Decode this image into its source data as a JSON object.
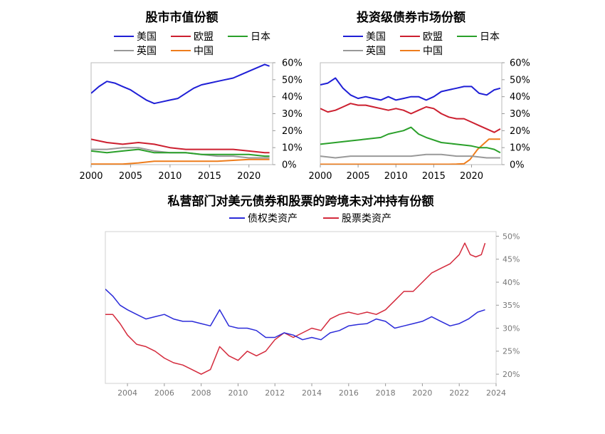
{
  "chart_data": [
    {
      "type": "line",
      "title": "股市市值份额",
      "xlim": [
        2000,
        2023
      ],
      "ylim": [
        0,
        60
      ],
      "x_ticks": [
        "2000",
        "2005",
        "2010",
        "2015",
        "2020"
      ],
      "y_ticks": [
        "0%",
        "10%",
        "20%",
        "30%",
        "40%",
        "50%",
        "60%"
      ],
      "grid": false,
      "legend_placement": "top",
      "series": [
        {
          "name": "美国",
          "color": "#1f1fd6",
          "x": [
            2000,
            2001,
            2002,
            2003,
            2004,
            2005,
            2006,
            2007,
            2008,
            2009,
            2010,
            2011,
            2012,
            2013,
            2014,
            2015,
            2016,
            2017,
            2018,
            2019,
            2020,
            2021,
            2022,
            2022.6
          ],
          "values": [
            42,
            46,
            49,
            48,
            46,
            44,
            41,
            38,
            36,
            37,
            38,
            39,
            42,
            45,
            47,
            48,
            49,
            50,
            51,
            53,
            55,
            57,
            59,
            58
          ]
        },
        {
          "name": "欧盟",
          "color": "#cc1f2f",
          "x": [
            2000,
            2002,
            2004,
            2006,
            2008,
            2010,
            2012,
            2014,
            2016,
            2018,
            2020,
            2022,
            2022.6
          ],
          "values": [
            15,
            13,
            12,
            13,
            12,
            10,
            9,
            9,
            9,
            9,
            8,
            7,
            7
          ]
        },
        {
          "name": "日本",
          "color": "#2aa02a",
          "x": [
            2000,
            2002,
            2004,
            2006,
            2008,
            2010,
            2012,
            2014,
            2016,
            2018,
            2020,
            2022,
            2022.6
          ],
          "values": [
            8,
            7,
            8,
            9,
            7,
            7,
            7,
            6,
            6,
            6,
            6,
            5,
            5
          ]
        },
        {
          "name": "英国",
          "color": "#999999",
          "x": [
            2000,
            2002,
            2004,
            2006,
            2008,
            2010,
            2012,
            2014,
            2016,
            2018,
            2020,
            2022,
            2022.6
          ],
          "values": [
            9,
            9,
            10,
            10,
            8,
            7,
            7,
            6,
            5,
            5,
            4,
            4,
            4
          ]
        },
        {
          "name": "中国",
          "color": "#ee7d1c",
          "x": [
            2000,
            2004,
            2006,
            2008,
            2010,
            2012,
            2014,
            2016,
            2018,
            2020,
            2022,
            2022.6
          ],
          "values": [
            0.3,
            0.3,
            1,
            2,
            2,
            2,
            2,
            2,
            2.5,
            3,
            3,
            3
          ]
        }
      ]
    },
    {
      "type": "line",
      "title": "投资级债券市场份额",
      "xlim": [
        2000,
        2024
      ],
      "ylim": [
        0,
        60
      ],
      "x_ticks": [
        "2000",
        "2005",
        "2010",
        "2015",
        "2020"
      ],
      "y_ticks": [
        "0%",
        "10%",
        "20%",
        "30%",
        "40%",
        "50%",
        "60%"
      ],
      "grid": false,
      "legend_placement": "top",
      "series": [
        {
          "name": "美国",
          "color": "#1f1fd6",
          "x": [
            2000,
            2001,
            2002,
            2003,
            2004,
            2005,
            2006,
            2007,
            2008,
            2009,
            2010,
            2011,
            2012,
            2013,
            2014,
            2015,
            2016,
            2017,
            2018,
            2019,
            2020,
            2021,
            2022,
            2023,
            2023.8
          ],
          "values": [
            47,
            48,
            51,
            45,
            41,
            39,
            40,
            39,
            38,
            40,
            38,
            39,
            40,
            40,
            38,
            40,
            43,
            44,
            45,
            46,
            46,
            42,
            41,
            44,
            45
          ]
        },
        {
          "name": "欧盟",
          "color": "#cc1f2f",
          "x": [
            2000,
            2001,
            2002,
            2003,
            2004,
            2005,
            2006,
            2007,
            2008,
            2009,
            2010,
            2011,
            2012,
            2013,
            2014,
            2015,
            2016,
            2017,
            2018,
            2019,
            2020,
            2021,
            2022,
            2023,
            2023.8
          ],
          "values": [
            33,
            31,
            32,
            34,
            36,
            35,
            35,
            34,
            33,
            32,
            33,
            32,
            30,
            32,
            34,
            33,
            30,
            28,
            27,
            27,
            25,
            23,
            21,
            19,
            21
          ]
        },
        {
          "name": "日本",
          "color": "#2aa02a",
          "x": [
            2000,
            2002,
            2004,
            2006,
            2008,
            2009,
            2010,
            2011,
            2012,
            2013,
            2014,
            2016,
            2018,
            2020,
            2021,
            2022,
            2023,
            2023.8
          ],
          "values": [
            12,
            13,
            14,
            15,
            16,
            18,
            19,
            20,
            22,
            18,
            16,
            13,
            12,
            11,
            10,
            10,
            9,
            7
          ]
        },
        {
          "name": "英国",
          "color": "#999999",
          "x": [
            2000,
            2002,
            2004,
            2006,
            2008,
            2010,
            2012,
            2014,
            2016,
            2018,
            2020,
            2022,
            2023.8
          ],
          "values": [
            5,
            4,
            5,
            5,
            5,
            5,
            5,
            6,
            6,
            5,
            5,
            4,
            4
          ]
        },
        {
          "name": "中国",
          "color": "#ee7d1c",
          "x": [
            2000,
            2016,
            2017,
            2018,
            2019,
            2019.8,
            2020.3,
            2020.8,
            2021.3,
            2021.8,
            2022.3,
            2023,
            2023.8
          ],
          "values": [
            0.2,
            0.2,
            0.2,
            0.3,
            0.5,
            3,
            6,
            9,
            11,
            13,
            15,
            15,
            15
          ]
        }
      ]
    },
    {
      "type": "line",
      "title": "私营部门对美元债券和股票的跨境未对冲持有份额",
      "xlim": [
        2002.8,
        2024
      ],
      "ylim": [
        18,
        51
      ],
      "x_ticks": [
        "2004",
        "2006",
        "2008",
        "2010",
        "2012",
        "2014",
        "2016",
        "2018",
        "2020",
        "2022",
        "2024"
      ],
      "y_ticks": [
        "20%",
        "25%",
        "30%",
        "35%",
        "40%",
        "45%",
        "50%"
      ],
      "grid": false,
      "legend_placement": "top",
      "series": [
        {
          "name": "债权类资产",
          "color": "#2b2bd9",
          "x": [
            2002.8,
            2003.2,
            2003.6,
            2004,
            2004.5,
            2005,
            2005.5,
            2006,
            2006.5,
            2007,
            2007.5,
            2008,
            2008.5,
            2009,
            2009.5,
            2010,
            2010.5,
            2011,
            2011.5,
            2012,
            2012.5,
            2013,
            2013.5,
            2014,
            2014.5,
            2015,
            2015.5,
            2016,
            2016.5,
            2017,
            2017.5,
            2018,
            2018.5,
            2019,
            2019.5,
            2020,
            2020.5,
            2021,
            2021.5,
            2022,
            2022.5,
            2023,
            2023.4
          ],
          "values": [
            38.5,
            37,
            35,
            34,
            33,
            32,
            32.5,
            33,
            32,
            31.5,
            31.5,
            31,
            30.5,
            34,
            30.5,
            30,
            30,
            29.5,
            28,
            28,
            29,
            28.5,
            27.5,
            28,
            27.5,
            29,
            29.5,
            30.5,
            30.8,
            31,
            32,
            31.5,
            30,
            30.5,
            31,
            31.5,
            32.5,
            31.5,
            30.5,
            31,
            32,
            33.5,
            34
          ]
        },
        {
          "name": "股票类资产",
          "color": "#d42a3c",
          "x": [
            2002.8,
            2003.2,
            2003.6,
            2004,
            2004.5,
            2005,
            2005.5,
            2006,
            2006.5,
            2007,
            2007.5,
            2008,
            2008.5,
            2009,
            2009.5,
            2010,
            2010.5,
            2011,
            2011.5,
            2012,
            2012.5,
            2013,
            2013.5,
            2014,
            2014.5,
            2015,
            2015.5,
            2016,
            2016.5,
            2017,
            2017.5,
            2018,
            2018.5,
            2019,
            2019.5,
            2020,
            2020.5,
            2021,
            2021.5,
            2022,
            2022.3,
            2022.6,
            2022.9,
            2023.2,
            2023.4
          ],
          "values": [
            33,
            33,
            31,
            28.5,
            26.5,
            26,
            25,
            23.5,
            22.5,
            22,
            21,
            20,
            21,
            26,
            24,
            23,
            25,
            24,
            25,
            27.5,
            29,
            28,
            29,
            30,
            29.5,
            32,
            33,
            33.5,
            33,
            33.5,
            33,
            34,
            36,
            38,
            38,
            40,
            42,
            43,
            44,
            46,
            48.5,
            46,
            45.5,
            46,
            48.5
          ]
        }
      ]
    }
  ]
}
